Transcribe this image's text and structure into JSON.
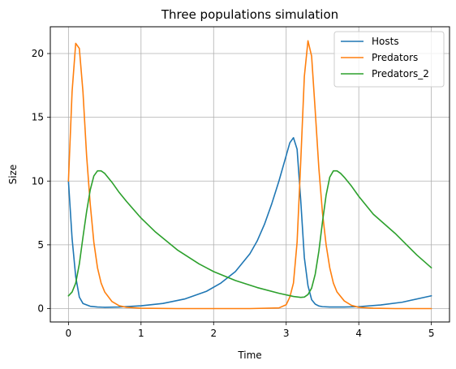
{
  "chart_data": {
    "type": "line",
    "title": "Three populations simulation",
    "xlabel": "Time",
    "ylabel": "Size",
    "xlim": [
      -0.25,
      5.25
    ],
    "ylim": [
      -1.05,
      22.1
    ],
    "xticks": [
      0,
      1,
      2,
      3,
      4,
      5
    ],
    "yticks": [
      0,
      5,
      10,
      15,
      20
    ],
    "grid": true,
    "legend_position": "top-right",
    "series": [
      {
        "name": "Hosts",
        "color": "#1f77b4",
        "x": [
          0,
          0.05,
          0.1,
          0.15,
          0.2,
          0.3,
          0.4,
          0.5,
          0.7,
          1.0,
          1.3,
          1.6,
          1.9,
          2.1,
          2.3,
          2.5,
          2.6,
          2.7,
          2.8,
          2.9,
          3.0,
          3.05,
          3.1,
          3.15,
          3.2,
          3.25,
          3.3,
          3.35,
          3.4,
          3.45,
          3.5,
          3.6,
          3.8,
          4.0,
          4.3,
          4.6,
          5.0
        ],
        "y": [
          10,
          5.5,
          2.5,
          0.9,
          0.4,
          0.18,
          0.12,
          0.1,
          0.12,
          0.22,
          0.4,
          0.75,
          1.35,
          2.0,
          2.9,
          4.3,
          5.3,
          6.6,
          8.2,
          10.0,
          12.0,
          13.0,
          13.4,
          12.5,
          8.5,
          4.0,
          1.8,
          0.7,
          0.35,
          0.2,
          0.15,
          0.12,
          0.12,
          0.15,
          0.28,
          0.5,
          1.0
        ]
      },
      {
        "name": "Predators",
        "color": "#ff7f0e",
        "x": [
          0,
          0.05,
          0.1,
          0.15,
          0.2,
          0.25,
          0.3,
          0.35,
          0.4,
          0.45,
          0.5,
          0.6,
          0.7,
          0.8,
          1.0,
          1.5,
          2.0,
          2.5,
          2.9,
          3.0,
          3.05,
          3.1,
          3.15,
          3.2,
          3.25,
          3.3,
          3.35,
          3.4,
          3.45,
          3.5,
          3.55,
          3.6,
          3.65,
          3.7,
          3.8,
          3.9,
          4.0,
          4.2,
          4.5,
          5.0
        ],
        "y": [
          10,
          17,
          20.8,
          20.4,
          17,
          12,
          8.2,
          5.2,
          3.2,
          2.0,
          1.3,
          0.55,
          0.22,
          0.1,
          0.03,
          0,
          0,
          0,
          0.05,
          0.3,
          0.9,
          2.0,
          5.2,
          11.5,
          18.2,
          21.0,
          19.8,
          15.5,
          11.0,
          7.5,
          5.0,
          3.2,
          2.0,
          1.3,
          0.6,
          0.25,
          0.1,
          0.03,
          0,
          0
        ]
      },
      {
        "name": "Predators_2",
        "color": "#2ca02c",
        "x": [
          0,
          0.05,
          0.1,
          0.15,
          0.2,
          0.25,
          0.3,
          0.35,
          0.4,
          0.45,
          0.5,
          0.6,
          0.7,
          0.8,
          1.0,
          1.2,
          1.5,
          1.8,
          2.0,
          2.3,
          2.6,
          2.9,
          3.1,
          3.2,
          3.25,
          3.3,
          3.35,
          3.4,
          3.45,
          3.5,
          3.55,
          3.6,
          3.65,
          3.7,
          3.75,
          3.8,
          3.9,
          4.0,
          4.2,
          4.5,
          4.8,
          5.0
        ],
        "y": [
          1.0,
          1.3,
          2.0,
          3.5,
          5.6,
          7.6,
          9.3,
          10.4,
          10.8,
          10.8,
          10.6,
          9.9,
          9.1,
          8.4,
          7.1,
          6.0,
          4.6,
          3.5,
          2.9,
          2.2,
          1.65,
          1.2,
          0.95,
          0.88,
          0.9,
          1.1,
          1.6,
          2.7,
          4.5,
          6.8,
          8.9,
          10.3,
          10.8,
          10.8,
          10.6,
          10.3,
          9.6,
          8.8,
          7.4,
          5.9,
          4.2,
          3.2
        ]
      }
    ]
  }
}
